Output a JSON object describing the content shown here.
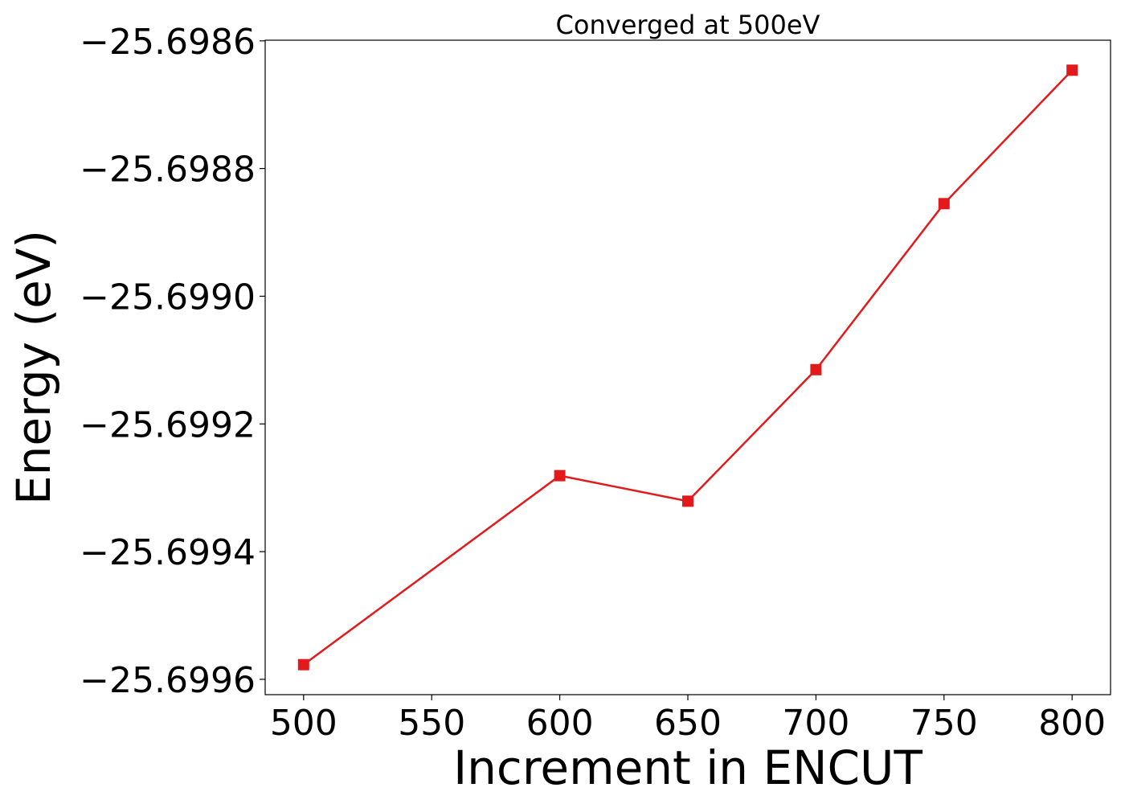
{
  "chart_data": {
    "type": "line",
    "title": "Converged at 500eV",
    "x_label": "Increment in ENCUT",
    "y_label": "Energy (eV)",
    "x": [
      500,
      600,
      650,
      700,
      750,
      800
    ],
    "series": [
      {
        "name": "Energy",
        "color": "#e31a1c",
        "marker": "square",
        "values": [
          -25.699577,
          -25.699281,
          -25.699321,
          -25.699115,
          -25.698855,
          -25.698646
        ]
      }
    ],
    "xlim": [
      485,
      815
    ],
    "xticks": [
      500,
      550,
      600,
      650,
      700,
      750,
      800
    ],
    "ylim": [
      -25.699624,
      -25.698599
    ],
    "yticks": [
      {
        "value": -25.6996,
        "label": "−25.6996"
      },
      {
        "value": -25.6994,
        "label": "−25.6994"
      },
      {
        "value": -25.6992,
        "label": "−25.6992"
      },
      {
        "value": -25.699,
        "label": "−25.6990"
      },
      {
        "value": -25.6988,
        "label": "−25.6988"
      },
      {
        "value": -25.6986,
        "label": "−25.6986"
      }
    ],
    "grid": false
  }
}
